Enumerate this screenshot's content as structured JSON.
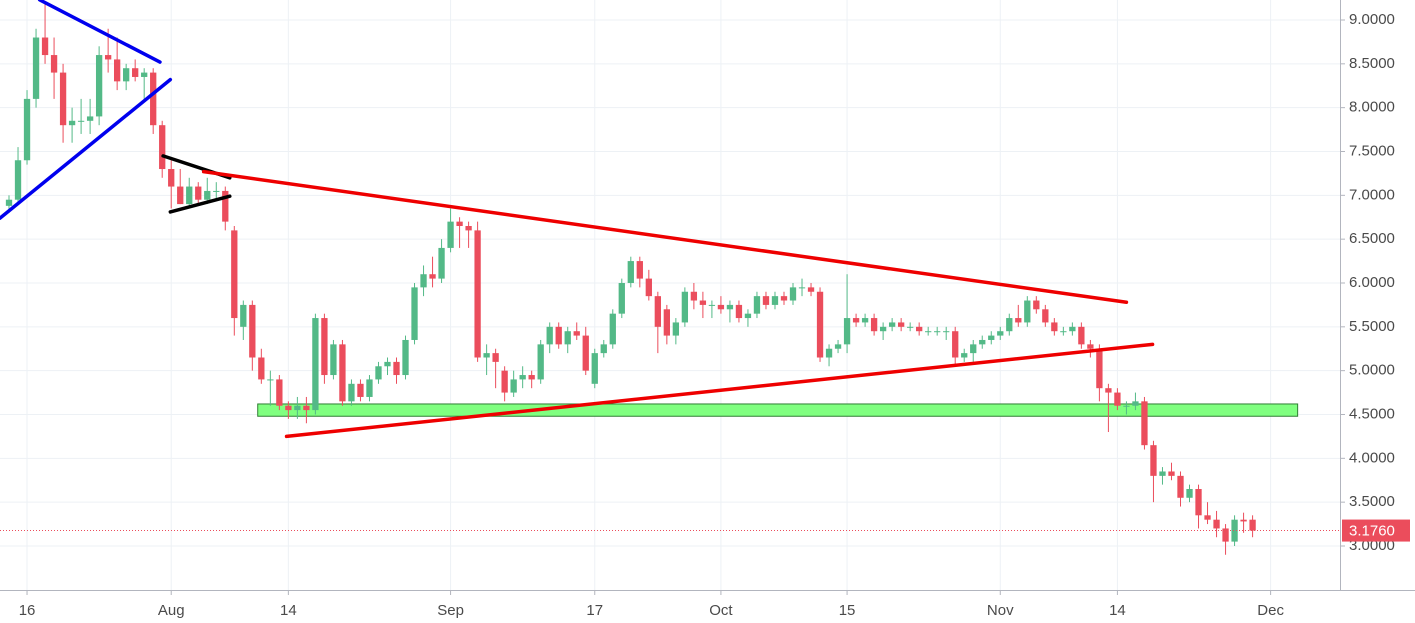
{
  "chart_data": {
    "type": "candlestick",
    "up_color": "#53b987",
    "down_color": "#eb4d5c",
    "grid": true,
    "xlim": [
      -1,
      147.7
    ],
    "ylim": [
      2.498,
      9.228
    ],
    "xticks": [
      {
        "value": 2,
        "label": "16"
      },
      {
        "value": 18,
        "label": "Aug"
      },
      {
        "value": 31,
        "label": "14"
      },
      {
        "value": 49,
        "label": "Sep"
      },
      {
        "value": 65,
        "label": "17"
      },
      {
        "value": 79,
        "label": "Oct"
      },
      {
        "value": 93,
        "label": "15"
      },
      {
        "value": 110,
        "label": "Nov"
      },
      {
        "value": 123,
        "label": "14"
      },
      {
        "value": 140,
        "label": "Dec"
      }
    ],
    "yticks": [
      {
        "value": 3.0,
        "label": "3.0000"
      },
      {
        "value": 3.5,
        "label": "3.5000"
      },
      {
        "value": 4.0,
        "label": "4.0000"
      },
      {
        "value": 4.5,
        "label": "4.5000"
      },
      {
        "value": 5.0,
        "label": "5.0000"
      },
      {
        "value": 5.5,
        "label": "5.5000"
      },
      {
        "value": 6.0,
        "label": "6.0000"
      },
      {
        "value": 6.5,
        "label": "6.5000"
      },
      {
        "value": 7.0,
        "label": "7.0000"
      },
      {
        "value": 7.5,
        "label": "7.5000"
      },
      {
        "value": 8.0,
        "label": "8.0000"
      },
      {
        "value": 8.5,
        "label": "8.5000"
      },
      {
        "value": 9.0,
        "label": "9.0000"
      }
    ],
    "open": [
      6.88,
      6.95,
      7.4,
      8.1,
      8.8,
      8.6,
      8.4,
      7.8,
      7.85,
      7.85,
      7.9,
      8.6,
      8.55,
      8.3,
      8.45,
      8.35,
      8.4,
      7.8,
      7.3,
      7.1,
      6.9,
      7.1,
      6.95,
      7.05,
      7.05,
      6.6,
      5.5,
      5.75,
      5.15,
      4.9,
      4.9,
      4.6,
      4.55,
      4.6,
      4.55,
      5.6,
      4.95,
      5.3,
      4.65,
      4.85,
      4.7,
      4.9,
      5.05,
      5.1,
      4.95,
      5.35,
      5.95,
      6.1,
      6.05,
      6.4,
      6.7,
      6.65,
      6.6,
      5.15,
      5.2,
      5.0,
      4.75,
      4.9,
      4.95,
      4.9,
      5.3,
      5.5,
      5.3,
      5.45,
      5.4,
      4.85,
      5.2,
      5.3,
      5.65,
      6.0,
      6.25,
      6.05,
      5.85,
      5.7,
      5.4,
      5.55,
      5.9,
      5.8,
      5.75,
      5.75,
      5.7,
      5.75,
      5.6,
      5.65,
      5.85,
      5.75,
      5.85,
      5.8,
      5.95,
      5.95,
      5.9,
      5.15,
      5.25,
      5.3,
      5.6,
      5.55,
      5.6,
      5.45,
      5.5,
      5.55,
      5.5,
      5.5,
      5.45,
      5.45,
      5.45,
      5.45,
      5.15,
      5.2,
      5.3,
      5.35,
      5.4,
      5.45,
      5.6,
      5.55,
      5.8,
      5.7,
      5.55,
      5.45,
      5.45,
      5.5,
      5.3,
      5.25,
      4.8,
      4.75,
      4.6,
      4.6,
      4.65,
      4.15,
      3.8,
      3.85,
      3.8,
      3.55,
      3.65,
      3.35,
      3.3,
      3.2,
      3.05,
      3.3,
      3.3
    ],
    "high": [
      7.0,
      7.55,
      8.2,
      8.9,
      9.2,
      8.8,
      8.5,
      8.0,
      8.1,
      8.1,
      8.7,
      8.9,
      8.8,
      8.5,
      8.55,
      8.45,
      8.45,
      7.85,
      7.4,
      7.3,
      7.2,
      7.15,
      7.2,
      7.15,
      7.1,
      6.65,
      5.8,
      5.8,
      5.25,
      5.0,
      4.95,
      4.65,
      4.7,
      4.7,
      5.65,
      5.65,
      5.35,
      5.35,
      4.9,
      4.9,
      4.95,
      5.1,
      5.15,
      5.15,
      5.4,
      6.0,
      6.2,
      6.3,
      6.5,
      6.85,
      6.75,
      6.7,
      6.7,
      5.3,
      5.25,
      5.05,
      5.0,
      5.05,
      5.0,
      5.35,
      5.55,
      5.55,
      5.5,
      5.55,
      5.5,
      5.25,
      5.35,
      5.7,
      6.05,
      6.3,
      6.3,
      6.15,
      5.9,
      5.75,
      5.6,
      5.95,
      6.0,
      5.9,
      5.8,
      5.85,
      5.8,
      5.8,
      5.7,
      5.9,
      5.9,
      5.9,
      5.9,
      6.0,
      6.05,
      6.0,
      5.95,
      5.3,
      5.35,
      6.1,
      5.65,
      5.65,
      5.65,
      5.55,
      5.6,
      5.6,
      5.55,
      5.55,
      5.5,
      5.5,
      5.5,
      5.5,
      5.25,
      5.35,
      5.4,
      5.45,
      5.5,
      5.65,
      5.75,
      5.85,
      5.85,
      5.75,
      5.6,
      5.5,
      5.55,
      5.55,
      5.35,
      5.3,
      4.85,
      4.8,
      4.65,
      4.75,
      4.7,
      4.2,
      3.9,
      3.95,
      3.85,
      3.7,
      3.7,
      3.5,
      3.4,
      3.25,
      3.35,
      3.38,
      3.35
    ],
    "low": [
      6.8,
      6.9,
      7.35,
      8.0,
      8.5,
      8.1,
      7.6,
      7.6,
      7.7,
      7.7,
      7.8,
      8.4,
      8.2,
      8.2,
      8.3,
      8.1,
      7.7,
      7.2,
      6.85,
      6.9,
      6.85,
      6.9,
      6.9,
      6.95,
      6.6,
      5.4,
      5.35,
      5.0,
      4.85,
      4.6,
      4.55,
      4.45,
      4.45,
      4.4,
      4.5,
      4.85,
      4.9,
      4.6,
      4.6,
      4.65,
      4.65,
      4.85,
      4.95,
      4.85,
      4.9,
      5.3,
      5.85,
      5.95,
      6.0,
      6.35,
      6.4,
      6.4,
      5.1,
      4.95,
      4.8,
      4.65,
      4.7,
      4.8,
      4.8,
      4.85,
      5.2,
      5.25,
      5.2,
      5.35,
      4.95,
      4.8,
      5.15,
      5.25,
      5.6,
      5.95,
      5.95,
      5.8,
      5.2,
      5.3,
      5.3,
      5.5,
      5.7,
      5.6,
      5.6,
      5.65,
      5.55,
      5.55,
      5.5,
      5.6,
      5.7,
      5.7,
      5.75,
      5.75,
      5.85,
      5.85,
      5.1,
      5.05,
      5.2,
      5.2,
      5.5,
      5.5,
      5.4,
      5.35,
      5.45,
      5.45,
      5.45,
      5.4,
      5.4,
      5.4,
      5.35,
      5.05,
      5.1,
      5.1,
      5.25,
      5.3,
      5.35,
      5.4,
      5.5,
      5.5,
      5.65,
      5.5,
      5.4,
      5.4,
      5.4,
      5.25,
      5.15,
      4.65,
      4.3,
      4.55,
      4.5,
      4.55,
      4.1,
      3.5,
      3.7,
      3.75,
      3.45,
      3.5,
      3.2,
      3.25,
      3.1,
      2.9,
      3.0,
      3.15,
      3.1
    ],
    "close": [
      6.95,
      7.4,
      8.1,
      8.8,
      8.6,
      8.4,
      7.8,
      7.85,
      7.85,
      7.9,
      8.6,
      8.55,
      8.3,
      8.45,
      8.35,
      8.4,
      7.8,
      7.3,
      7.1,
      6.9,
      7.1,
      6.95,
      7.05,
      7.05,
      6.7,
      5.6,
      5.75,
      5.15,
      4.9,
      4.9,
      4.6,
      4.55,
      4.6,
      4.55,
      5.6,
      4.95,
      5.3,
      4.65,
      4.85,
      4.7,
      4.9,
      5.05,
      5.1,
      4.95,
      5.35,
      5.95,
      6.1,
      6.05,
      6.4,
      6.7,
      6.65,
      6.6,
      5.15,
      5.2,
      5.1,
      4.75,
      4.9,
      4.95,
      4.9,
      5.3,
      5.5,
      5.3,
      5.45,
      5.4,
      5.0,
      5.2,
      5.3,
      5.65,
      6.0,
      6.25,
      6.05,
      5.85,
      5.5,
      5.4,
      5.55,
      5.9,
      5.8,
      5.75,
      5.75,
      5.7,
      5.75,
      5.6,
      5.65,
      5.85,
      5.75,
      5.85,
      5.8,
      5.95,
      5.95,
      5.9,
      5.15,
      5.25,
      5.3,
      5.6,
      5.55,
      5.6,
      5.45,
      5.5,
      5.55,
      5.5,
      5.5,
      5.45,
      5.45,
      5.45,
      5.45,
      5.15,
      5.2,
      5.3,
      5.35,
      5.4,
      5.45,
      5.6,
      5.55,
      5.8,
      5.7,
      5.55,
      5.45,
      5.45,
      5.5,
      5.3,
      5.25,
      4.8,
      4.75,
      4.6,
      4.6,
      4.65,
      4.15,
      3.8,
      3.85,
      3.8,
      3.55,
      3.65,
      3.35,
      3.3,
      3.2,
      3.05,
      3.3,
      3.28,
      3.176
    ],
    "last_price": {
      "value": 3.176,
      "label": "3.1760",
      "color": "#eb4d5c"
    },
    "zones": [
      {
        "color": "#80ff80",
        "x": [
          27.6,
          143
        ],
        "y": [
          4.48,
          4.62
        ]
      }
    ],
    "trendlines": [
      {
        "color": "#0000ee",
        "points": [
          [
            3.4,
            9.23
          ],
          [
            16.75,
            8.52
          ]
        ]
      },
      {
        "color": "#0000ee",
        "points": [
          [
            -1,
            6.74
          ],
          [
            17.9,
            8.32
          ]
        ]
      },
      {
        "color": "#000000",
        "points": [
          [
            17.1,
            7.45
          ],
          [
            24.5,
            7.2
          ]
        ]
      },
      {
        "color": "#000000",
        "points": [
          [
            17.9,
            6.81
          ],
          [
            24.5,
            6.99
          ]
        ]
      },
      {
        "color": "#ee0000",
        "points": [
          [
            21.6,
            7.27
          ],
          [
            124,
            5.78
          ]
        ]
      },
      {
        "color": "#ee0000",
        "points": [
          [
            30.8,
            4.25
          ],
          [
            126.9,
            5.3
          ]
        ]
      }
    ]
  }
}
